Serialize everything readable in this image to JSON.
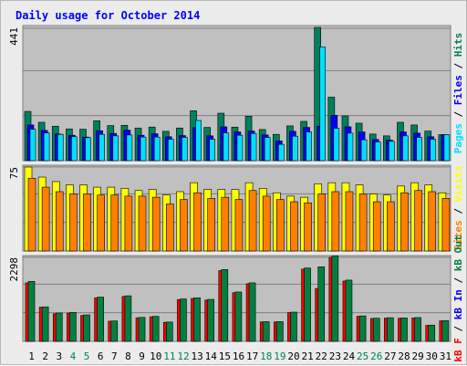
{
  "title": "Daily usage for October 2014",
  "colors": {
    "hits": "#00805c",
    "files": "#0080ff",
    "pages": "#00e0ff",
    "visits": "#ffff00",
    "sites": "#ff8000",
    "kb_in": "#0000ff",
    "kb_out": "#008040",
    "kb_f": "#ff0000",
    "frame_bg": "#ececec",
    "plot_bg": "#c0c0c0",
    "title": "#0000ff",
    "weekend_label": "#00805c",
    "weekday_label": "#000000"
  },
  "chart_data": [
    {
      "type": "bar",
      "panel": "hits-files-pages",
      "ymax_label": "441",
      "ylim": [
        0,
        441
      ],
      "legend": [
        {
          "text": "Pages",
          "color": "#00e0ff"
        },
        {
          "text": " / ",
          "color": "#000000"
        },
        {
          "text": "Files",
          "color": "#0000ff"
        },
        {
          "text": " / ",
          "color": "#000000"
        },
        {
          "text": "Hits",
          "color": "#00805c"
        }
      ],
      "series": [
        {
          "name": "Hits",
          "values": [
            163,
            127,
            114,
            105,
            104,
            132,
            116,
            117,
            108,
            111,
            97,
            108,
            165,
            110,
            157,
            111,
            147,
            103,
            87,
            115,
            130,
            441,
            210,
            148,
            124,
            88,
            82,
            127,
            118,
            98,
            86
          ]
        },
        {
          "name": "Files",
          "values": [
            118,
            100,
            88,
            84,
            78,
            99,
            90,
            101,
            84,
            89,
            79,
            83,
            109,
            82,
            112,
            95,
            98,
            85,
            65,
            97,
            110,
            114,
            150,
            112,
            95,
            70,
            68,
            95,
            91,
            79,
            86
          ]
        },
        {
          "name": "Pages",
          "values": [
            104,
            92,
            87,
            79,
            76,
            87,
            82,
            85,
            78,
            78,
            71,
            77,
            133,
            71,
            92,
            84,
            90,
            77,
            54,
            81,
            95,
            376,
            107,
            91,
            69,
            62,
            64,
            82,
            77,
            71,
            86
          ]
        }
      ]
    },
    {
      "type": "bar",
      "panel": "visits-sites",
      "ymax_label": "75",
      "ylim": [
        0,
        75
      ],
      "legend": [
        {
          "text": "Sites",
          "color": "#ff8000"
        },
        {
          "text": " / ",
          "color": "#000000"
        },
        {
          "text": "Visits",
          "color": "#ffff00"
        }
      ],
      "series": [
        {
          "name": "Visits",
          "values": [
            75,
            66,
            62,
            59,
            59,
            57,
            57,
            56,
            54,
            55,
            50,
            53,
            61,
            55,
            55,
            55,
            61,
            56,
            52,
            49,
            48,
            60,
            61,
            61,
            59,
            51,
            50,
            58,
            61,
            59,
            52
          ]
        },
        {
          "name": "Sites",
          "values": [
            65,
            57,
            53,
            51,
            51,
            50,
            50,
            49,
            49,
            48,
            42,
            46,
            52,
            47,
            48,
            46,
            54,
            49,
            46,
            44,
            43,
            51,
            53,
            53,
            51,
            44,
            44,
            52,
            54,
            53,
            47
          ]
        }
      ]
    },
    {
      "type": "bar",
      "panel": "kb",
      "ymax_label": "2298",
      "ylim": [
        0,
        2298
      ],
      "legend": [
        {
          "text": "kB F",
          "color": "#ff0000"
        },
        {
          "text": " / ",
          "color": "#000000"
        },
        {
          "text": "kB In",
          "color": "#0000ff"
        },
        {
          "text": " / ",
          "color": "#000000"
        },
        {
          "text": "kB Out",
          "color": "#008040"
        }
      ],
      "series": [
        {
          "name": "kB F",
          "values": [
            1600,
            935,
            755,
            772,
            708,
            1192,
            551,
            1228,
            645,
            673,
            520,
            1143,
            1174,
            1130,
            1935,
            1331,
            1576,
            531,
            531,
            787,
            1977,
            1448,
            2298,
            1651,
            685,
            625,
            637,
            632,
            641,
            437,
            560
          ]
        },
        {
          "name": "kB Out",
          "values": [
            1641,
            944,
            775,
            791,
            724,
            1211,
            558,
            1246,
            656,
            684,
            528,
            1160,
            1192,
            1148,
            1965,
            1351,
            1600,
            539,
            539,
            799,
            2007,
            2040,
            2334,
            1676,
            696,
            634,
            647,
            642,
            651,
            444,
            569
          ]
        }
      ]
    }
  ],
  "x_labels": [
    "1",
    "2",
    "3",
    "4",
    "5",
    "6",
    "7",
    "8",
    "9",
    "10",
    "11",
    "12",
    "13",
    "14",
    "15",
    "16",
    "17",
    "18",
    "19",
    "20",
    "21",
    "22",
    "23",
    "24",
    "25",
    "26",
    "27",
    "28",
    "29",
    "30",
    "31"
  ],
  "weekend_days": [
    4,
    5,
    11,
    12,
    18,
    19,
    25,
    26
  ]
}
